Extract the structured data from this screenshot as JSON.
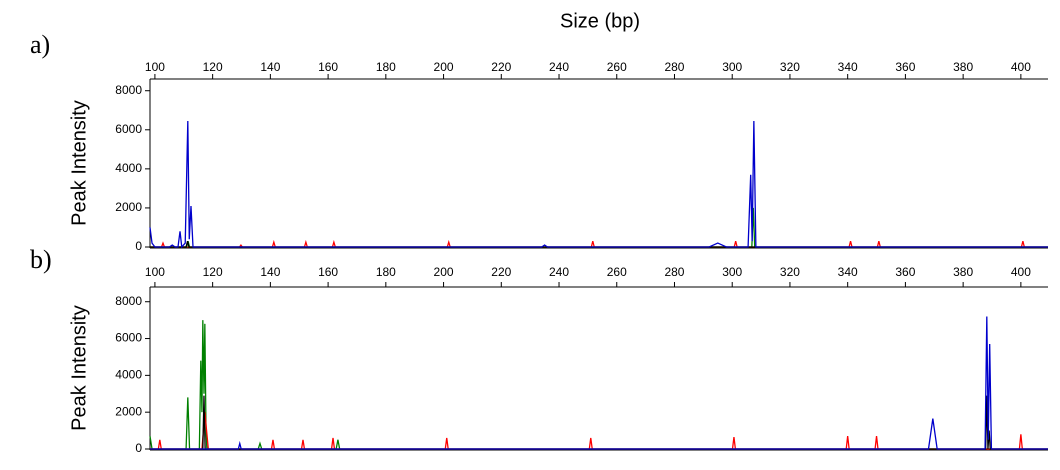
{
  "chart_data": [
    {
      "type": "line",
      "panel_label": "a)",
      "title": "Size (bp)",
      "ylabel": "Peak Intensity",
      "xlim": [
        98.3,
        409.4
      ],
      "xticks": [
        100,
        120,
        140,
        160,
        180,
        200,
        220,
        240,
        260,
        280,
        300,
        320,
        340,
        360,
        380,
        400
      ],
      "ylim": [
        0,
        8600
      ],
      "yticks": [
        0,
        2000,
        4000,
        6000,
        8000
      ],
      "series": [
        {
          "color": "#ff0000",
          "x": [
            98.3,
            102.3,
            102.8,
            103.3,
            129.3,
            129.8,
            130.3,
            140.7,
            141.2,
            141.7,
            151.8,
            152.3,
            152.8,
            161.5,
            162,
            162.5,
            201.3,
            201.8,
            202.3,
            251.2,
            251.7,
            252.2,
            300.7,
            301.2,
            301.7,
            340.5,
            341,
            341.5,
            350.3,
            350.8,
            351.3,
            400.2,
            400.7,
            401.2,
            409.4
          ],
          "values": [
            0,
            0,
            200,
            0,
            0,
            100,
            0,
            0,
            250,
            0,
            0,
            250,
            0,
            0,
            250,
            0,
            0,
            250,
            0,
            0,
            300,
            0,
            0,
            300,
            0,
            0,
            300,
            0,
            0,
            300,
            0,
            0,
            300,
            0,
            0
          ]
        },
        {
          "color": "#008000",
          "x": [
            98.3,
            111,
            111.5,
            112,
            306.8,
            307.3,
            307.8,
            409.4
          ],
          "values": [
            0,
            0,
            300,
            0,
            0,
            2000,
            0,
            0
          ]
        },
        {
          "color": "#000000",
          "x": [
            98.3,
            110.8,
            111.3,
            111.8,
            409.4
          ],
          "values": [
            0,
            0,
            300,
            0,
            0
          ]
        },
        {
          "color": "#0000cc",
          "x": [
            98.3,
            99,
            100,
            105,
            106,
            107,
            108,
            108.7,
            109.3,
            110.5,
            111.4,
            111.9,
            112.5,
            113.2,
            234,
            235,
            236,
            292,
            295,
            298,
            305.5,
            306.4,
            306.9,
            307.5,
            308.2,
            409.4
          ],
          "values": [
            1000,
            200,
            0,
            0,
            100,
            0,
            0,
            800,
            0,
            200,
            6450,
            400,
            2100,
            0,
            0,
            100,
            0,
            0,
            200,
            0,
            0,
            3700,
            300,
            6450,
            0,
            0
          ]
        }
      ]
    },
    {
      "type": "line",
      "panel_label": "b)",
      "ylabel": "Peak Intensity",
      "xlim": [
        98.3,
        409.4
      ],
      "xticks": [
        100,
        120,
        140,
        160,
        180,
        200,
        220,
        240,
        260,
        280,
        300,
        320,
        340,
        360,
        380,
        400
      ],
      "ylim": [
        0,
        8800
      ],
      "yticks": [
        0,
        2000,
        4000,
        6000,
        8000
      ],
      "series": [
        {
          "color": "#008000",
          "x": [
            98.3,
            99,
            99.8,
            110.8,
            111.4,
            112,
            115.4,
            115.9,
            116.3,
            116.6,
            117,
            117.3,
            117.7,
            118,
            118.6,
            135.8,
            136.4,
            137,
            162.8,
            163.4,
            164,
            409.4
          ],
          "values": [
            700,
            0,
            0,
            0,
            2800,
            0,
            0,
            4800,
            2000,
            7000,
            3000,
            6800,
            1000,
            0,
            0,
            0,
            300,
            0,
            0,
            500,
            0,
            0
          ]
        },
        {
          "color": "#ff0000",
          "x": [
            98.3,
            101.2,
            101.7,
            102.2,
            116.3,
            117.3,
            118.5,
            140.4,
            140.9,
            141.4,
            150.8,
            151.3,
            151.8,
            161.2,
            161.7,
            162.2,
            200.6,
            201.1,
            201.6,
            250.5,
            251,
            251.5,
            300.1,
            300.6,
            301.1,
            339.5,
            340,
            340.5,
            349.5,
            350,
            350.5,
            399.5,
            400,
            400.5,
            409.4
          ],
          "values": [
            0,
            0,
            500,
            0,
            0,
            2000,
            0,
            0,
            500,
            0,
            0,
            500,
            0,
            0,
            600,
            0,
            0,
            600,
            0,
            0,
            600,
            0,
            0,
            650,
            0,
            0,
            700,
            0,
            0,
            700,
            0,
            0,
            800,
            0,
            0
          ]
        },
        {
          "color": "#000000",
          "x": [
            98.3,
            116.6,
            117,
            117.4,
            387.8,
            388.2,
            388.6,
            389,
            389.4,
            409.4
          ],
          "values": [
            0,
            0,
            2900,
            0,
            0,
            2900,
            0,
            1000,
            0,
            0
          ]
        },
        {
          "color": "#0000cc",
          "x": [
            98.3,
            128.9,
            129.4,
            129.9,
            368,
            369.5,
            371,
            387.6,
            388.2,
            388.7,
            389.2,
            389.8,
            409.4
          ],
          "values": [
            0,
            0,
            300,
            0,
            0,
            1650,
            0,
            0,
            7200,
            500,
            5700,
            0,
            0
          ]
        }
      ]
    }
  ]
}
